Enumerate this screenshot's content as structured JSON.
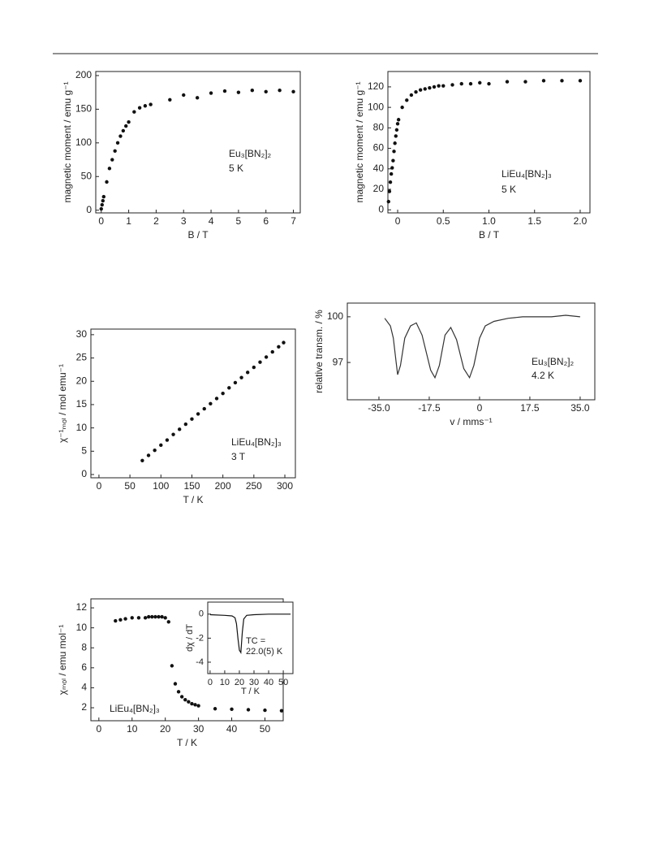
{
  "chart_data": [
    {
      "type": "scatter",
      "xlabel": "B / T",
      "ylabel": "magnetic moment / emu g⁻¹",
      "annotations": [
        "Eu₃[BN₂]₂",
        "5 K"
      ],
      "xlim": [
        -0.2,
        7.25
      ],
      "ylim": [
        -4,
        206
      ],
      "xticks": [
        0,
        1,
        2,
        3,
        4,
        5,
        6,
        7
      ],
      "yticks": [
        0,
        50,
        100,
        150,
        200
      ],
      "color": "#111111",
      "x": [
        0.0,
        0.03,
        0.06,
        0.09,
        0.2,
        0.3,
        0.4,
        0.5,
        0.6,
        0.7,
        0.8,
        0.9,
        1.0,
        1.2,
        1.4,
        1.6,
        1.8,
        2.5,
        3.0,
        3.5,
        4.0,
        4.5,
        5.0,
        5.5,
        6.0,
        6.5,
        7.0
      ],
      "values": [
        2,
        8,
        14,
        20,
        42,
        62,
        75,
        88,
        100,
        110,
        118,
        125,
        131,
        146,
        152,
        155,
        157,
        164,
        171,
        167,
        174,
        177,
        175,
        178,
        176,
        178,
        176
      ]
    },
    {
      "type": "scatter",
      "xlabel": "B / T",
      "ylabel": "magnetic moment / emu g⁻¹",
      "annotations": [
        "LiEu₄[BN₂]₃",
        "5 K"
      ],
      "xlim": [
        -0.107,
        2.107
      ],
      "ylim": [
        -3,
        135
      ],
      "xticks": [
        0,
        0.5,
        {
          "value": 1,
          "label": "1.0"
        },
        1.5,
        {
          "value": 2,
          "label": "2.0"
        }
      ],
      "yticks": [
        0,
        20,
        40,
        60,
        80,
        100,
        120
      ],
      "color": "#111111",
      "x": [
        -0.1,
        -0.09,
        -0.08,
        -0.07,
        -0.06,
        -0.05,
        -0.04,
        -0.03,
        -0.02,
        -0.01,
        0.0,
        0.01,
        0.05,
        0.1,
        0.15,
        0.2,
        0.25,
        0.3,
        0.35,
        0.4,
        0.45,
        0.5,
        0.6,
        0.7,
        0.8,
        0.9,
        1.0,
        1.2,
        1.4,
        1.6,
        1.8,
        2.0
      ],
      "values": [
        8,
        18,
        27,
        35,
        41,
        48,
        57,
        65,
        72,
        78,
        84,
        88,
        100,
        107,
        112,
        115,
        117,
        118,
        119,
        120,
        121,
        121,
        122,
        123,
        123,
        124,
        123,
        125,
        125,
        126,
        126,
        126
      ]
    },
    {
      "type": "scatter",
      "xlabel": "T / K",
      "ylabel": "χ⁻¹ₘₒₗ / mol emu⁻¹",
      "annotations": [
        "LiEu₄[BN₂]₃",
        "3 T"
      ],
      "xlim": [
        -13,
        317
      ],
      "ylim": [
        -0.7,
        31.2
      ],
      "xticks": [
        0,
        50,
        100,
        150,
        200,
        250,
        300
      ],
      "yticks": [
        0,
        5,
        10,
        15,
        20,
        25,
        30
      ],
      "color": "#111111",
      "x": [
        70,
        80,
        90,
        100,
        110,
        120,
        130,
        140,
        150,
        160,
        170,
        180,
        190,
        200,
        210,
        220,
        230,
        240,
        250,
        260,
        270,
        280,
        290,
        298
      ],
      "values": [
        3.0,
        4.1,
        5.2,
        6.3,
        7.4,
        8.6,
        9.7,
        10.8,
        11.9,
        13.0,
        14.1,
        15.2,
        16.3,
        17.4,
        18.6,
        19.7,
        20.8,
        21.9,
        23.0,
        24.1,
        25.2,
        26.3,
        27.4,
        28.3
      ]
    },
    {
      "type": "line",
      "xlabel": "v / mms⁻¹",
      "ylabel": "relative transm. / %",
      "annotations": [
        "Eu₃[BN₂]₂",
        "4.2 K"
      ],
      "xlim": [
        -46,
        40.1
      ],
      "ylim": [
        94.55,
        100.9
      ],
      "xticks": [
        {
          "value": -35,
          "label": "-35.0"
        },
        -17.5,
        0,
        17.5,
        {
          "value": 35,
          "label": "35.0"
        }
      ],
      "yticks": [
        97,
        100
      ],
      "color": "#333333",
      "x": [
        -33,
        -31,
        -30,
        -29,
        -28.5,
        -27.5,
        -26,
        -24,
        -22,
        -20,
        -17,
        -15.5,
        -14,
        -12,
        -10,
        -8,
        -5.5,
        -3.5,
        -2,
        0,
        2,
        5,
        10,
        15,
        20,
        25,
        30,
        35
      ],
      "values": [
        99.9,
        99.4,
        98.6,
        97.0,
        96.2,
        96.8,
        98.6,
        99.4,
        99.6,
        98.8,
        96.5,
        96.0,
        96.8,
        98.8,
        99.3,
        98.5,
        96.6,
        96.0,
        96.8,
        98.6,
        99.4,
        99.7,
        99.9,
        100.0,
        100.0,
        100.0,
        100.1,
        100.0
      ]
    },
    {
      "type": "scatter",
      "xlabel": "T / K",
      "ylabel": "χₘₒₗ / emu mol⁻¹",
      "annotations": [
        "LiEu₄[BN₂]₃"
      ],
      "xlim": [
        -2.4,
        55.5
      ],
      "ylim": [
        0.7,
        12.9
      ],
      "xticks": [
        0,
        10,
        20,
        30,
        40,
        50
      ],
      "yticks": [
        2,
        4,
        6,
        8,
        10,
        12
      ],
      "color": "#111111",
      "x": [
        5,
        6.5,
        8,
        10,
        12,
        14,
        15,
        16,
        17,
        18,
        19,
        20,
        21,
        22,
        23,
        24,
        25,
        26,
        27,
        28,
        29,
        30,
        35,
        40,
        45,
        50,
        55
      ],
      "values": [
        10.7,
        10.8,
        10.9,
        11.0,
        11.0,
        11.0,
        11.1,
        11.1,
        11.1,
        11.1,
        11.1,
        11.0,
        10.6,
        6.2,
        4.4,
        3.6,
        3.1,
        2.8,
        2.6,
        2.4,
        2.3,
        2.2,
        1.9,
        1.85,
        1.8,
        1.75,
        1.7
      ]
    },
    {
      "type": "line",
      "xlabel": "T / K",
      "ylabel": "dχ / dT",
      "annotations": [
        "TC =",
        "22.0(5) K"
      ],
      "xlim": [
        -1.6,
        56.6
      ],
      "ylim": [
        -4.95,
        1.0
      ],
      "xticks": [
        0,
        10,
        20,
        30,
        40,
        50
      ],
      "yticks": [
        0,
        -2,
        -4
      ],
      "color": "#111111",
      "x": [
        0,
        10,
        15,
        17,
        18,
        19,
        20,
        21,
        22,
        23,
        25,
        30,
        40,
        55
      ],
      "values": [
        -0.05,
        -0.1,
        -0.15,
        -0.3,
        -0.8,
        -2.0,
        -3.0,
        -3.2,
        -1.5,
        -0.4,
        -0.1,
        -0.05,
        0,
        0
      ]
    }
  ]
}
